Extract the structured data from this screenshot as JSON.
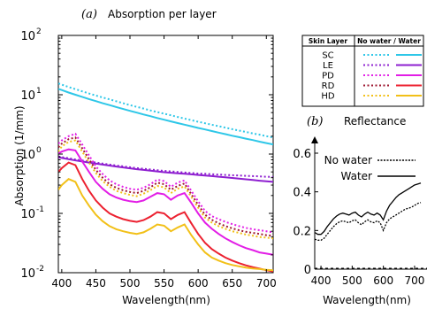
{
  "figure": {
    "panel_a_letter": "(a)",
    "panel_b_letter": "(b)"
  },
  "chart_data": [
    {
      "type": "line",
      "title": "Absorption per layer",
      "xlabel": "Wavelength(nm)",
      "ylabel": "Absorption (1/mm)",
      "yscale": "log",
      "xlim": [
        395,
        710
      ],
      "ylim": [
        0.01,
        100
      ],
      "x_ticks": [
        "400",
        "450",
        "500",
        "550",
        "600",
        "650",
        "700"
      ],
      "y_ticks": [
        {
          "base": "10",
          "exp": "-2"
        },
        {
          "base": "10",
          "exp": "-1"
        },
        {
          "base": "10",
          "exp": "0"
        },
        {
          "base": "10",
          "exp": "1"
        },
        {
          "base": "10",
          "exp": "2"
        }
      ],
      "x": [
        395,
        400,
        410,
        420,
        430,
        440,
        450,
        460,
        470,
        480,
        490,
        500,
        510,
        520,
        530,
        540,
        550,
        560,
        570,
        580,
        590,
        600,
        610,
        620,
        630,
        640,
        650,
        660,
        670,
        680,
        690,
        700,
        710
      ],
      "legend": {
        "header_layer": "Skin Layer",
        "header_cond": "No water / Water",
        "position": "top-right"
      },
      "series": [
        {
          "name": "SC",
          "condition": "No water",
          "color": "#2ec7e8",
          "style": "dotted",
          "values": [
            15.5,
            14.8,
            13.5,
            12.4,
            11.4,
            10.5,
            9.7,
            9.0,
            8.35,
            7.75,
            7.2,
            6.7,
            6.25,
            5.85,
            5.45,
            5.1,
            4.8,
            4.5,
            4.22,
            3.97,
            3.73,
            3.51,
            3.31,
            3.12,
            2.95,
            2.78,
            2.63,
            2.49,
            2.36,
            2.23,
            2.12,
            2.0,
            1.9
          ]
        },
        {
          "name": "SC",
          "condition": "Water",
          "color": "#2ec7e8",
          "style": "solid",
          "values": [
            12.5,
            12.0,
            10.9,
            10.0,
            9.2,
            8.45,
            7.8,
            7.2,
            6.7,
            6.2,
            5.75,
            5.35,
            5.0,
            4.65,
            4.35,
            4.05,
            3.8,
            3.55,
            3.33,
            3.13,
            2.94,
            2.76,
            2.6,
            2.44,
            2.3,
            2.17,
            2.04,
            1.93,
            1.82,
            1.72,
            1.62,
            1.53,
            1.45
          ]
        },
        {
          "name": "LE",
          "condition": "No water",
          "color": "#8e1fd0",
          "style": "dotted",
          "values": [
            0.91,
            0.89,
            0.85,
            0.81,
            0.78,
            0.75,
            0.72,
            0.69,
            0.665,
            0.64,
            0.62,
            0.6,
            0.58,
            0.565,
            0.55,
            0.535,
            0.52,
            0.51,
            0.5,
            0.49,
            0.48,
            0.47,
            0.465,
            0.457,
            0.45,
            0.445,
            0.44,
            0.435,
            0.43,
            0.425,
            0.42,
            0.415,
            0.41
          ]
        },
        {
          "name": "LE",
          "condition": "Water",
          "color": "#8e1fd0",
          "style": "solid",
          "values": [
            0.88,
            0.86,
            0.82,
            0.78,
            0.75,
            0.72,
            0.69,
            0.665,
            0.64,
            0.615,
            0.595,
            0.575,
            0.555,
            0.54,
            0.525,
            0.51,
            0.495,
            0.485,
            0.475,
            0.465,
            0.455,
            0.445,
            0.435,
            0.425,
            0.415,
            0.405,
            0.395,
            0.385,
            0.375,
            0.365,
            0.355,
            0.347,
            0.34
          ]
        },
        {
          "name": "PD",
          "condition": "No water",
          "color": "#e21ee6",
          "style": "dotted",
          "values": [
            1.5,
            1.7,
            2.0,
            2.2,
            1.45,
            0.95,
            0.62,
            0.46,
            0.36,
            0.31,
            0.28,
            0.26,
            0.25,
            0.27,
            0.31,
            0.37,
            0.35,
            0.28,
            0.33,
            0.36,
            0.24,
            0.16,
            0.11,
            0.09,
            0.08,
            0.072,
            0.066,
            0.061,
            0.057,
            0.054,
            0.052,
            0.05,
            0.048
          ]
        },
        {
          "name": "PD",
          "condition": "Water",
          "color": "#e21ee6",
          "style": "solid",
          "values": [
            1.02,
            1.1,
            1.2,
            1.15,
            0.75,
            0.5,
            0.34,
            0.26,
            0.21,
            0.185,
            0.17,
            0.16,
            0.155,
            0.165,
            0.19,
            0.22,
            0.21,
            0.17,
            0.2,
            0.22,
            0.15,
            0.1,
            0.07,
            0.055,
            0.045,
            0.038,
            0.033,
            0.029,
            0.026,
            0.024,
            0.022,
            0.021,
            0.02
          ]
        },
        {
          "name": "RD",
          "condition": "No water",
          "color": "#9e1730",
          "style": "dotted",
          "values": [
            1.3,
            1.5,
            1.78,
            1.9,
            1.25,
            0.82,
            0.54,
            0.4,
            0.31,
            0.27,
            0.245,
            0.23,
            0.22,
            0.24,
            0.275,
            0.33,
            0.31,
            0.25,
            0.29,
            0.32,
            0.21,
            0.14,
            0.095,
            0.078,
            0.068,
            0.061,
            0.056,
            0.052,
            0.049,
            0.047,
            0.045,
            0.043,
            0.042
          ]
        },
        {
          "name": "RD",
          "condition": "Water",
          "color": "#ec2130",
          "style": "solid",
          "values": [
            0.5,
            0.58,
            0.72,
            0.65,
            0.38,
            0.24,
            0.165,
            0.125,
            0.1,
            0.088,
            0.08,
            0.075,
            0.072,
            0.077,
            0.088,
            0.105,
            0.1,
            0.08,
            0.094,
            0.105,
            0.068,
            0.045,
            0.032,
            0.025,
            0.021,
            0.018,
            0.016,
            0.0145,
            0.0133,
            0.0124,
            0.0117,
            0.011,
            0.0105
          ]
        },
        {
          "name": "HD",
          "condition": "No water",
          "color": "#f2c018",
          "style": "dotted",
          "values": [
            1.1,
            1.35,
            1.6,
            1.7,
            1.1,
            0.72,
            0.48,
            0.35,
            0.28,
            0.24,
            0.22,
            0.205,
            0.195,
            0.215,
            0.245,
            0.29,
            0.275,
            0.22,
            0.26,
            0.285,
            0.19,
            0.125,
            0.085,
            0.07,
            0.061,
            0.055,
            0.05,
            0.047,
            0.044,
            0.042,
            0.04,
            0.039,
            0.038
          ]
        },
        {
          "name": "HD",
          "condition": "Water",
          "color": "#f2c018",
          "style": "solid",
          "values": [
            0.25,
            0.3,
            0.38,
            0.34,
            0.2,
            0.135,
            0.095,
            0.074,
            0.061,
            0.054,
            0.05,
            0.047,
            0.045,
            0.048,
            0.055,
            0.065,
            0.062,
            0.05,
            0.058,
            0.065,
            0.043,
            0.03,
            0.022,
            0.018,
            0.016,
            0.0145,
            0.0135,
            0.0128,
            0.0122,
            0.0118,
            0.0115,
            0.0112,
            0.011
          ]
        }
      ]
    },
    {
      "type": "line",
      "title": "Reflectance",
      "xlabel": "Wavelength(nm)",
      "ylabel": "",
      "xlim": [
        380,
        720
      ],
      "ylim": [
        0,
        0.6
      ],
      "x_ticks": [
        "400",
        "500",
        "600",
        "700"
      ],
      "y_ticks": [
        "0",
        "0.2",
        "0.4",
        "0.6"
      ],
      "x": [
        380,
        390,
        400,
        410,
        420,
        430,
        440,
        450,
        460,
        470,
        480,
        490,
        500,
        510,
        520,
        530,
        540,
        550,
        560,
        570,
        580,
        590,
        600,
        610,
        620,
        630,
        640,
        650,
        660,
        670,
        680,
        690,
        700,
        710,
        720
      ],
      "legend": {
        "position": "top-left"
      },
      "series": [
        {
          "name": "No water",
          "color": "#000000",
          "style": "dotted",
          "values": [
            0.155,
            0.15,
            0.15,
            0.16,
            0.18,
            0.2,
            0.22,
            0.235,
            0.245,
            0.25,
            0.245,
            0.24,
            0.25,
            0.255,
            0.24,
            0.23,
            0.245,
            0.255,
            0.245,
            0.24,
            0.25,
            0.24,
            0.2,
            0.24,
            0.26,
            0.27,
            0.28,
            0.29,
            0.3,
            0.31,
            0.315,
            0.32,
            0.33,
            0.34,
            0.345
          ]
        },
        {
          "name": "Water",
          "color": "#000000",
          "style": "solid",
          "values": [
            0.19,
            0.18,
            0.18,
            0.195,
            0.22,
            0.24,
            0.26,
            0.275,
            0.285,
            0.29,
            0.285,
            0.28,
            0.29,
            0.295,
            0.28,
            0.27,
            0.285,
            0.295,
            0.285,
            0.28,
            0.29,
            0.28,
            0.255,
            0.3,
            0.33,
            0.35,
            0.37,
            0.385,
            0.395,
            0.405,
            0.415,
            0.425,
            0.435,
            0.44,
            0.445
          ]
        }
      ]
    }
  ]
}
